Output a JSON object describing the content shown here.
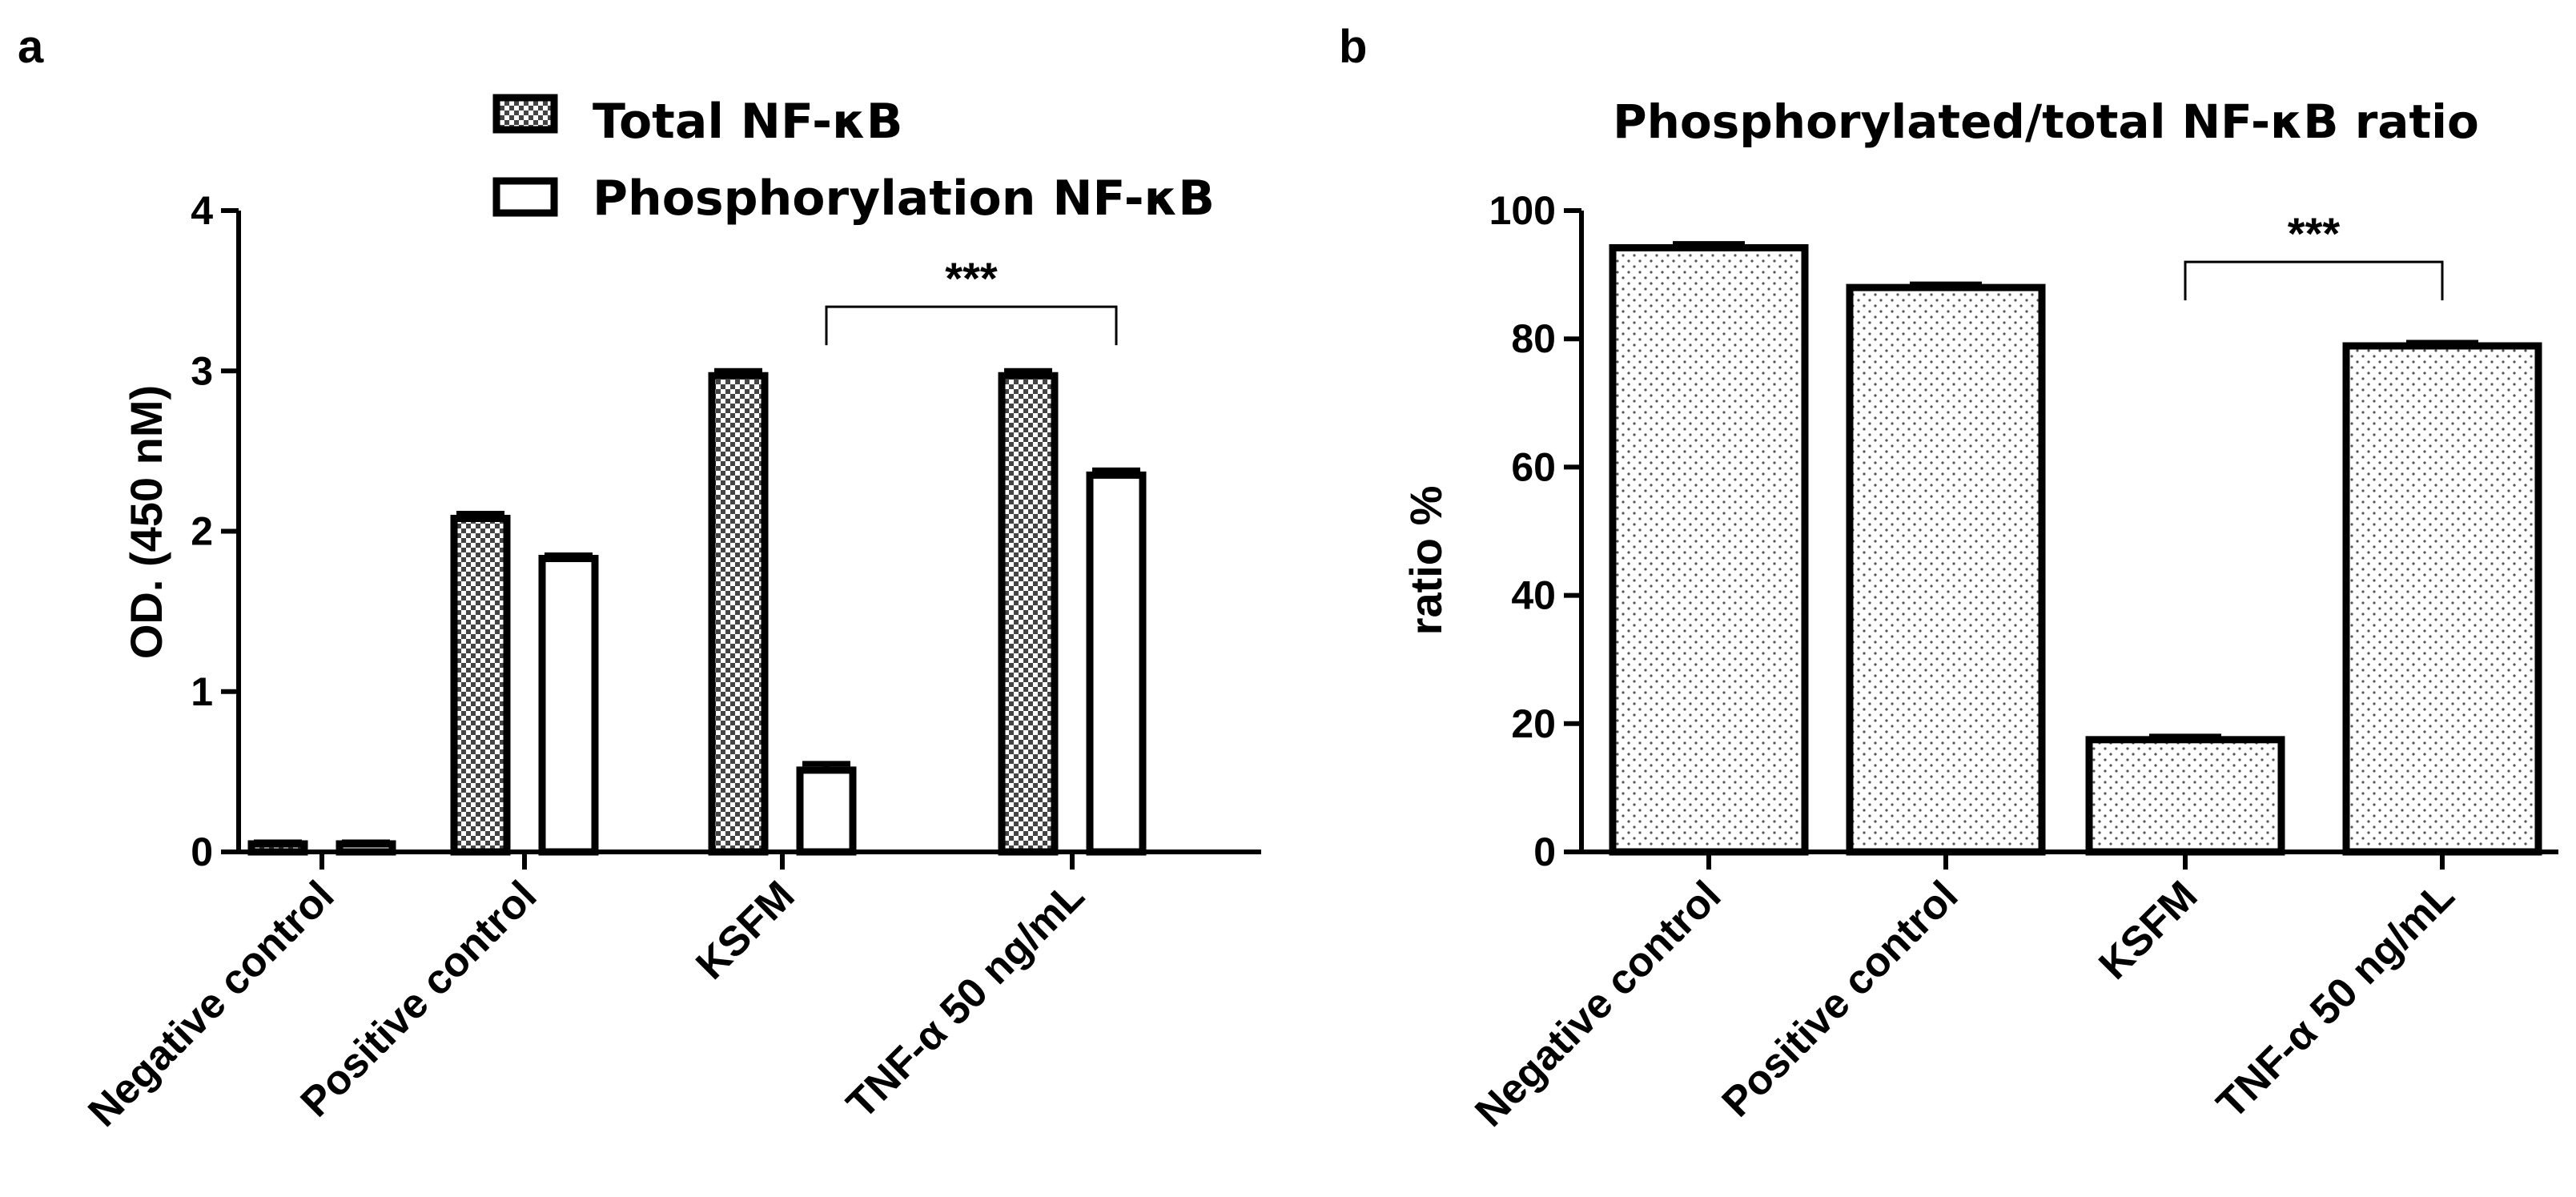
{
  "chart_data": [
    {
      "panel": "a",
      "type": "bar",
      "title": "",
      "ylabel": "OD. (450 nM)",
      "xlabel": "",
      "ylim": [
        0,
        4
      ],
      "yticks": [
        0,
        1,
        2,
        3,
        4
      ],
      "categories": [
        "Negative control",
        "Positive control",
        "KSFM",
        "TNF-α 50 ng/mL"
      ],
      "series": [
        {
          "name": "Total NF-κB",
          "pattern": "checker",
          "values": [
            0.05,
            2.08,
            2.97,
            2.97
          ],
          "errors": [
            0.01,
            0.03,
            0.03,
            0.03
          ]
        },
        {
          "name": "Phosphorylation NF-κB",
          "pattern": "white",
          "values": [
            0.05,
            1.83,
            0.51,
            2.35
          ],
          "errors": [
            0.01,
            0.02,
            0.04,
            0.03
          ]
        }
      ],
      "legend_position": "top-right",
      "significance": {
        "text": "***",
        "from_category": 2,
        "from_series": 1,
        "to_category": 3,
        "to_series": 1,
        "at_value": 3.4
      }
    },
    {
      "panel": "b",
      "type": "bar",
      "title": "Phosphorylated/total NF-κB ratio",
      "ylabel": "ratio %",
      "xlabel": "",
      "ylim": [
        0,
        100
      ],
      "yticks": [
        0,
        20,
        40,
        60,
        80,
        100
      ],
      "categories": [
        "Negative control",
        "Positive control",
        "KSFM",
        "TNF-α 50 ng/mL"
      ],
      "series": [
        {
          "name": "",
          "pattern": "dots",
          "values": [
            94.2,
            88.0,
            17.5,
            78.9
          ],
          "errors": [
            0.6,
            0.5,
            0.5,
            0.5
          ]
        }
      ],
      "significance": {
        "text": "***",
        "from_category": 2,
        "to_category": 3,
        "at_value": 92
      }
    }
  ]
}
